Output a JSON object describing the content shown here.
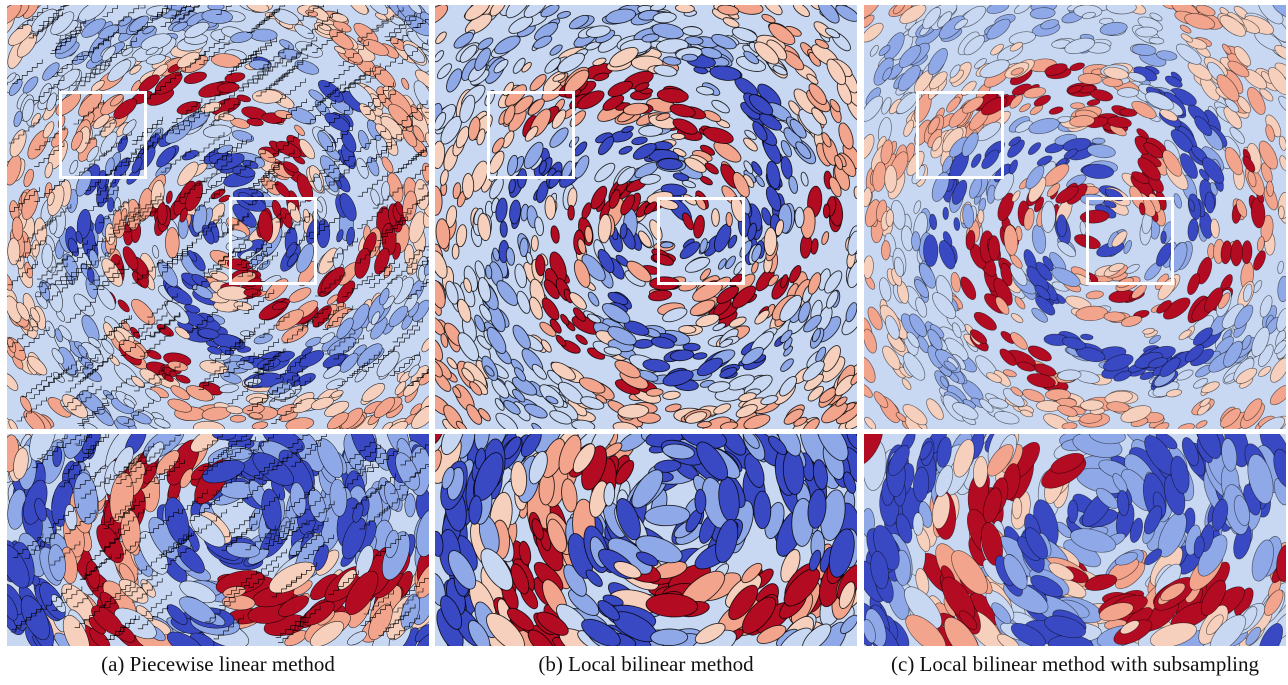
{
  "figure": {
    "columns": [
      {
        "id": "a",
        "caption": "(a) Piecewise linear method",
        "contour_style": "staircase"
      },
      {
        "id": "b",
        "caption": "(b) Local bilinear method",
        "contour_style": "dense"
      },
      {
        "id": "c",
        "caption": "(c) Local bilinear method with subsampling",
        "contour_style": "smooth"
      }
    ],
    "colors": {
      "deep_red": "#b30b22",
      "light_red": "#f2a48c",
      "peach": "#f6cfbd",
      "pale_blue": "#c9d8f2",
      "mid_blue": "#8fa9e8",
      "deep_blue": "#3949c4",
      "contour": "#000000",
      "highlight_box": "#ffffff"
    },
    "colormap": "coolwarm (diverging blue–red)"
  }
}
